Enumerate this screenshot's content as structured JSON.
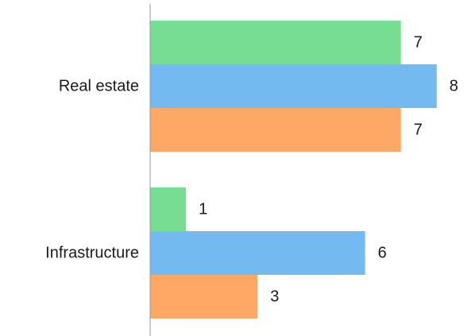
{
  "chart_data": {
    "type": "bar",
    "orientation": "horizontal",
    "categories": [
      "Real estate",
      "Infrastructure"
    ],
    "series": [
      {
        "values": [
          7,
          1
        ],
        "color": "#77dd93"
      },
      {
        "values": [
          8,
          6
        ],
        "color": "#72baf0"
      },
      {
        "values": [
          7,
          3
        ],
        "color": "#ffa865"
      }
    ],
    "data_labels": true,
    "xlim": [
      0,
      8
    ],
    "grid": false,
    "legend": "none"
  }
}
